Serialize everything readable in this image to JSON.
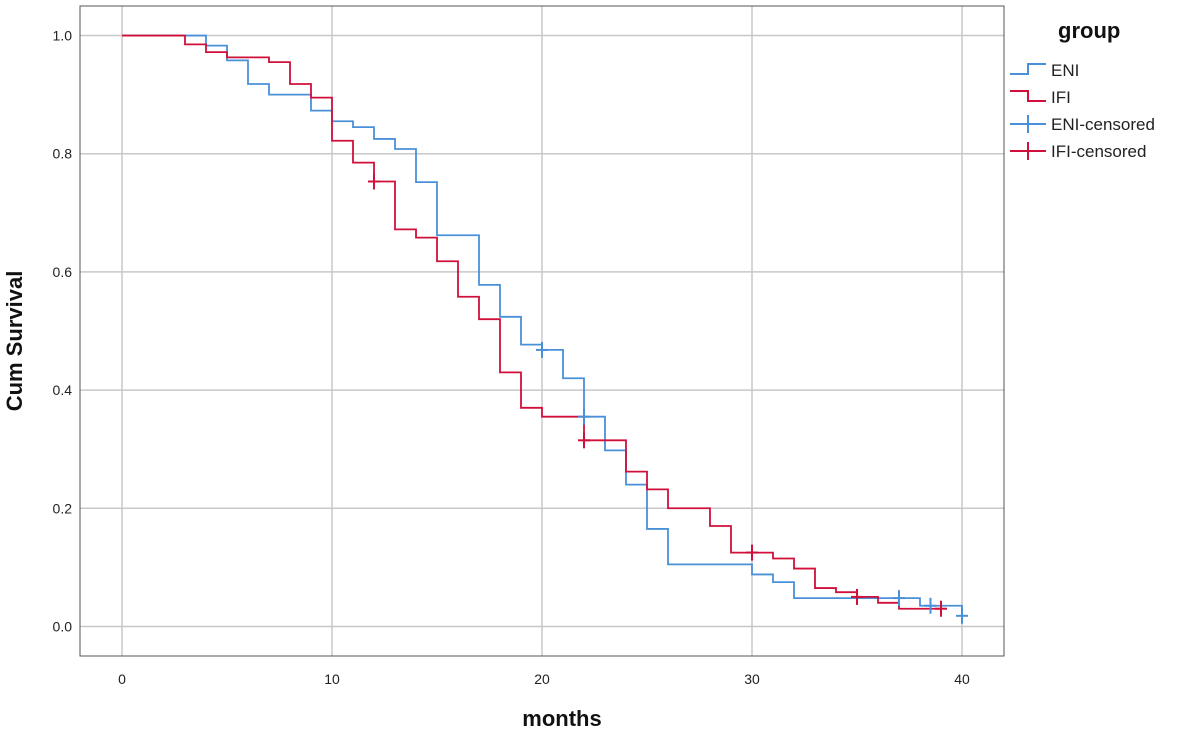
{
  "chart_data": {
    "type": "line",
    "subtype": "kaplan-meier-step",
    "title": "",
    "xlabel": "months",
    "ylabel": "Cum Survival",
    "xlim": [
      -2,
      42
    ],
    "ylim": [
      -0.05,
      1.05
    ],
    "xticks": [
      0,
      10,
      20,
      30,
      40
    ],
    "yticks": [
      0.0,
      0.2,
      0.4,
      0.6,
      0.8,
      1.0
    ],
    "ytick_labels": [
      "0.0",
      "0.2",
      "0.4",
      "0.6",
      "0.8",
      "1.0"
    ],
    "grid": true,
    "legend": {
      "title": "group",
      "placement": "top-right, outside plot",
      "entries": [
        "ENI",
        "IFI",
        "ENI-censored",
        "IFI-censored"
      ]
    },
    "series": [
      {
        "name": "ENI",
        "color": "#4a90d9",
        "steps": [
          [
            0,
            1.0
          ],
          [
            4,
            0.983
          ],
          [
            5,
            0.958
          ],
          [
            6,
            0.918
          ],
          [
            7,
            0.9
          ],
          [
            9,
            0.873
          ],
          [
            10,
            0.855
          ],
          [
            11,
            0.845
          ],
          [
            12,
            0.825
          ],
          [
            13,
            0.808
          ],
          [
            14,
            0.752
          ],
          [
            15,
            0.662
          ],
          [
            17,
            0.578
          ],
          [
            18,
            0.524
          ],
          [
            19,
            0.477
          ],
          [
            20,
            0.468
          ],
          [
            21,
            0.42
          ],
          [
            22,
            0.355
          ],
          [
            23,
            0.298
          ],
          [
            24,
            0.24
          ],
          [
            25,
            0.165
          ],
          [
            26,
            0.105
          ],
          [
            30,
            0.088
          ],
          [
            31,
            0.075
          ],
          [
            32,
            0.048
          ],
          [
            38,
            0.035
          ],
          [
            40,
            0.018
          ]
        ],
        "censored": [
          [
            20,
            0.468
          ],
          [
            22,
            0.355
          ],
          [
            37,
            0.048
          ],
          [
            38.5,
            0.035
          ],
          [
            40,
            0.018
          ]
        ]
      },
      {
        "name": "IFI",
        "color": "#d0103a",
        "steps": [
          [
            0,
            1.0
          ],
          [
            3,
            0.985
          ],
          [
            4,
            0.972
          ],
          [
            5,
            0.963
          ],
          [
            7,
            0.955
          ],
          [
            8,
            0.918
          ],
          [
            9,
            0.895
          ],
          [
            10,
            0.822
          ],
          [
            11,
            0.785
          ],
          [
            12,
            0.753
          ],
          [
            13,
            0.672
          ],
          [
            14,
            0.658
          ],
          [
            15,
            0.618
          ],
          [
            16,
            0.558
          ],
          [
            17,
            0.52
          ],
          [
            18,
            0.43
          ],
          [
            19,
            0.37
          ],
          [
            20,
            0.355
          ],
          [
            22,
            0.315
          ],
          [
            24,
            0.262
          ],
          [
            25,
            0.232
          ],
          [
            26,
            0.2
          ],
          [
            28,
            0.17
          ],
          [
            29,
            0.125
          ],
          [
            31,
            0.115
          ],
          [
            32,
            0.098
          ],
          [
            33,
            0.065
          ],
          [
            34,
            0.058
          ],
          [
            35,
            0.05
          ],
          [
            36,
            0.04
          ],
          [
            37,
            0.03
          ],
          [
            39,
            0.03
          ]
        ],
        "censored": [
          [
            12,
            0.753
          ],
          [
            22,
            0.315
          ],
          [
            30,
            0.125
          ],
          [
            35,
            0.05
          ],
          [
            39,
            0.03
          ]
        ]
      }
    ]
  }
}
